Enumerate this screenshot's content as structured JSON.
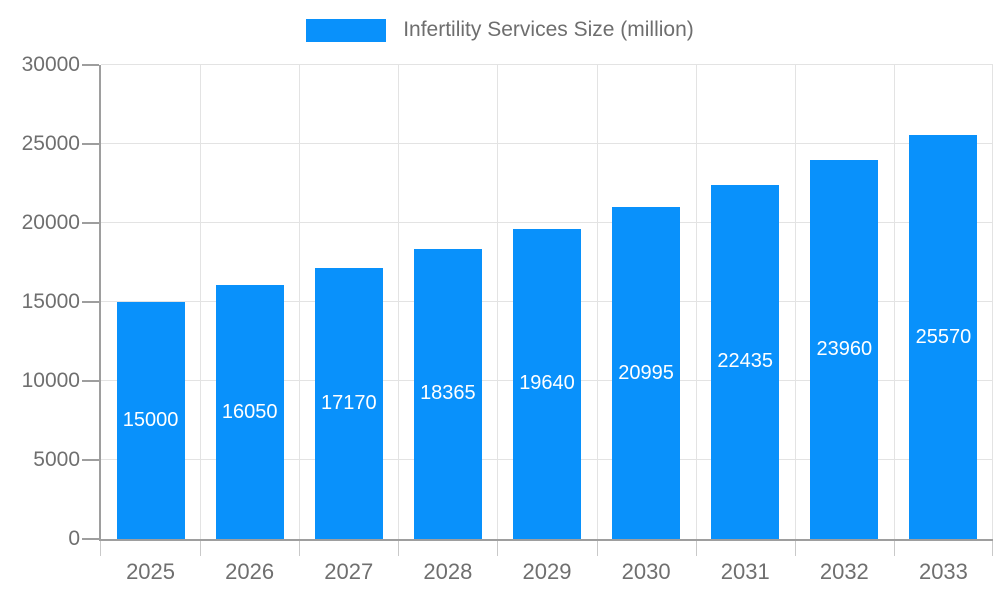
{
  "legend": {
    "label": "Infertility Services Size (million)"
  },
  "chart_data": {
    "type": "bar",
    "title": "Infertility Services Size (million)",
    "categories": [
      "2025",
      "2026",
      "2027",
      "2028",
      "2029",
      "2030",
      "2031",
      "2032",
      "2033"
    ],
    "values": [
      15000,
      16050,
      17170,
      18365,
      19640,
      20995,
      22435,
      23960,
      25570
    ],
    "xlabel": "",
    "ylabel": "",
    "ylim": [
      0,
      30000
    ],
    "yticks": [
      0,
      5000,
      10000,
      15000,
      20000,
      25000,
      30000
    ],
    "grid": true,
    "legend_position": "top-center",
    "colors": {
      "bar": "#0991fb",
      "bar_label": "#ffffff",
      "axis_line": "#9e9e9e",
      "gridline": "#e3e3e3",
      "tick_label": "#6f6f6f",
      "legend_text": "#6e6e6e",
      "background": "#ffffff"
    }
  }
}
